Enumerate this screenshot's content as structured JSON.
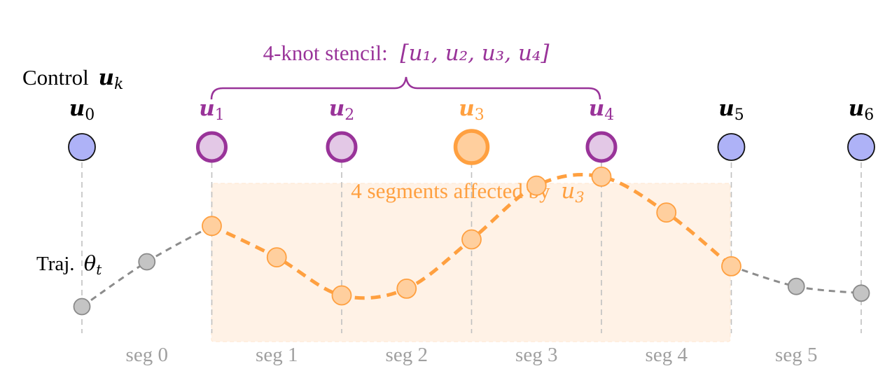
{
  "colors": {
    "knot_fill": "#aeb2f7",
    "stencil": "#993399",
    "stencil_fill": "#e3c8e6",
    "highlight": "#ffa040",
    "highlight_fill": "#ffcf9e",
    "region_fill": "#fff2e6",
    "gray_fill": "#c4c4c4",
    "gray_stroke": "#8a8a8a",
    "guide": "#c0c0c0"
  },
  "labels": {
    "control": "Control",
    "control_sym": "u",
    "control_sub": "k",
    "traj": "Traj.",
    "traj_sym": "θ",
    "traj_sub": "t",
    "stencil_prefix": "4-knot stencil:",
    "stencil_list": "[u₁, u₂, u₃, u₄]",
    "affected_prefix": "4 segments affected by",
    "affected_sym": "u",
    "affected_sub": "3"
  },
  "knots": [
    {
      "sym": "u",
      "sub": "0",
      "role": "normal"
    },
    {
      "sym": "u",
      "sub": "1",
      "role": "stencil"
    },
    {
      "sym": "u",
      "sub": "2",
      "role": "stencil"
    },
    {
      "sym": "u",
      "sub": "3",
      "role": "highlight"
    },
    {
      "sym": "u",
      "sub": "4",
      "role": "stencil"
    },
    {
      "sym": "u",
      "sub": "5",
      "role": "normal"
    },
    {
      "sym": "u",
      "sub": "6",
      "role": "normal"
    }
  ],
  "segments": [
    "seg 0",
    "seg 1",
    "seg 2",
    "seg 3",
    "seg 4",
    "seg 5"
  ],
  "trajectory": {
    "gray_before": [
      [
        0,
        0.1
      ],
      [
        0.5,
        0.3
      ],
      [
        1.0,
        0.46
      ]
    ],
    "orange": [
      [
        1.0,
        0.46
      ],
      [
        1.5,
        0.32
      ],
      [
        2.0,
        0.15
      ],
      [
        2.5,
        0.18
      ],
      [
        3.0,
        0.4
      ],
      [
        3.5,
        0.64
      ],
      [
        4.0,
        0.68
      ],
      [
        4.5,
        0.52
      ],
      [
        5.0,
        0.28
      ]
    ],
    "gray_after": [
      [
        5.0,
        0.28
      ],
      [
        5.5,
        0.19
      ],
      [
        6.0,
        0.16
      ]
    ]
  }
}
